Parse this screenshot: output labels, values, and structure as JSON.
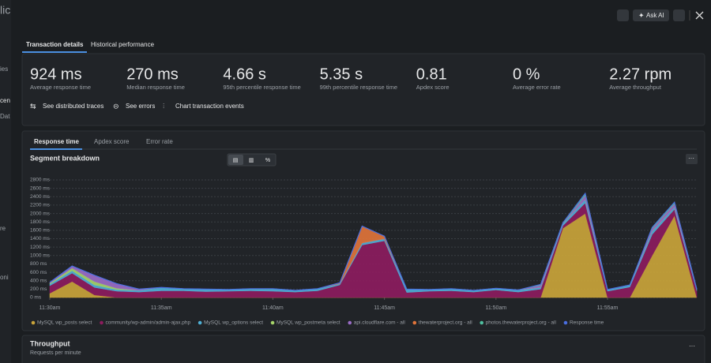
{
  "background": {
    "sidebar_fragments": [
      "lic",
      "ies",
      "cen",
      "Dat",
      "re",
      "oni"
    ]
  },
  "toolbar": {
    "ask_ai": "Ask AI"
  },
  "tabs": [
    "Transaction details",
    "Historical performance"
  ],
  "metrics": [
    {
      "value": "924 ms",
      "label": "Average response time"
    },
    {
      "value": "270 ms",
      "label": "Median response time"
    },
    {
      "value": "4.66 s",
      "label": "95th percentile response time"
    },
    {
      "value": "5.35 s",
      "label": "99th percentile response time"
    },
    {
      "value": "0.81",
      "label": "Apdex score"
    },
    {
      "value": "0 %",
      "label": "Average error rate"
    },
    {
      "value": "2.27 rpm",
      "label": "Average throughput"
    }
  ],
  "links": [
    "See distributed traces",
    "See errors",
    "Chart transaction events"
  ],
  "chart_tabs": [
    "Response time",
    "Apdex score",
    "Error rate"
  ],
  "chart_data": {
    "type": "area",
    "title": "Segment breakdown",
    "grid": true,
    "categories": [
      "11:30am",
      null,
      null,
      null,
      null,
      "11:35am",
      null,
      null,
      null,
      null,
      "11:40am",
      null,
      null,
      null,
      null,
      "11:45am",
      null,
      null,
      null,
      null,
      "11:50am",
      null,
      null,
      null,
      null,
      "11:55am",
      null,
      null,
      null,
      null
    ],
    "ylim": [
      0,
      2800
    ],
    "yticks": [
      {
        "value": 0,
        "label": "0 ms"
      },
      {
        "value": 200,
        "label": "200 ms"
      },
      {
        "value": 400,
        "label": "400 ms"
      },
      {
        "value": 600,
        "label": "600 ms"
      },
      {
        "value": 800,
        "label": "800 ms"
      },
      {
        "value": 1000,
        "label": "1000 ms"
      },
      {
        "value": 1200,
        "label": "1200 ms"
      },
      {
        "value": 1400,
        "label": "1400 ms"
      },
      {
        "value": 1600,
        "label": "1600 ms"
      },
      {
        "value": 1800,
        "label": "1800 ms"
      },
      {
        "value": 2000,
        "label": "2000 ms"
      },
      {
        "value": 2200,
        "label": "2200 ms"
      },
      {
        "value": 2400,
        "label": "2400 ms"
      },
      {
        "value": 2600,
        "label": "2600 ms"
      },
      {
        "value": 2800,
        "label": "2800 ms"
      }
    ],
    "series": [
      {
        "name": "MySQL wp_posts select",
        "color": "#c9a43a",
        "values": [
          100,
          380,
          60,
          0,
          0,
          0,
          0,
          0,
          0,
          0,
          0,
          0,
          0,
          0,
          0,
          0,
          0,
          0,
          0,
          0,
          0,
          0,
          0,
          1650,
          2000,
          0,
          0,
          1000,
          1950,
          0
        ]
      },
      {
        "name": "community/wp-admin/admin-ajax.php",
        "color": "#8c1c5e",
        "values": [
          180,
          200,
          180,
          150,
          130,
          160,
          160,
          140,
          150,
          160,
          150,
          130,
          160,
          300,
          1250,
          1350,
          120,
          150,
          160,
          130,
          180,
          130,
          200,
          60,
          250,
          150,
          250,
          500,
          150,
          160
        ]
      },
      {
        "name": "MySQL wp_options select",
        "color": "#4fb0d6",
        "values": [
          40,
          60,
          60,
          40,
          40,
          80,
          50,
          60,
          40,
          50,
          60,
          40,
          50,
          30,
          50,
          50,
          80,
          40,
          50,
          40,
          40,
          50,
          40,
          50,
          80,
          40,
          50,
          80,
          50,
          40
        ]
      },
      {
        "name": "MySQL wp_postmeta select",
        "color": "#a6d46a",
        "values": [
          20,
          60,
          80,
          30,
          0,
          0,
          0,
          0,
          0,
          0,
          0,
          0,
          0,
          0,
          0,
          0,
          0,
          0,
          0,
          0,
          0,
          0,
          0,
          0,
          0,
          0,
          0,
          0,
          0,
          0
        ]
      },
      {
        "name": "api.cloudflare.com - all",
        "color": "#9a6cc6",
        "values": [
          20,
          50,
          150,
          110,
          30,
          0,
          0,
          0,
          0,
          0,
          0,
          0,
          0,
          0,
          0,
          0,
          0,
          0,
          0,
          0,
          0,
          0,
          50,
          0,
          100,
          0,
          0,
          60,
          80,
          0
        ]
      },
      {
        "name": "thewaterproject.org - all",
        "color": "#e0743a",
        "values": [
          0,
          0,
          0,
          0,
          0,
          0,
          0,
          0,
          0,
          0,
          0,
          0,
          0,
          20,
          400,
          60,
          0,
          0,
          0,
          0,
          0,
          0,
          0,
          0,
          0,
          0,
          0,
          0,
          0,
          0
        ]
      },
      {
        "name": "photos.thewaterproject.org - all",
        "color": "#4fc0a0",
        "values": [
          0,
          0,
          0,
          0,
          0,
          0,
          0,
          0,
          0,
          0,
          0,
          0,
          0,
          0,
          0,
          0,
          0,
          0,
          0,
          0,
          0,
          0,
          20,
          20,
          50,
          0,
          0,
          30,
          40,
          0
        ]
      },
      {
        "name": "Response time",
        "color": "#4a6ee0",
        "type": "line",
        "values": [
          360,
          750,
          530,
          330,
          200,
          240,
          210,
          200,
          190,
          210,
          210,
          170,
          210,
          350,
          1700,
          1460,
          200,
          190,
          210,
          170,
          220,
          180,
          310,
          1780,
          2480,
          190,
          300,
          1670,
          2270,
          200
        ]
      }
    ]
  },
  "throughput": {
    "title": "Throughput",
    "subtitle": "Requests per minute"
  }
}
